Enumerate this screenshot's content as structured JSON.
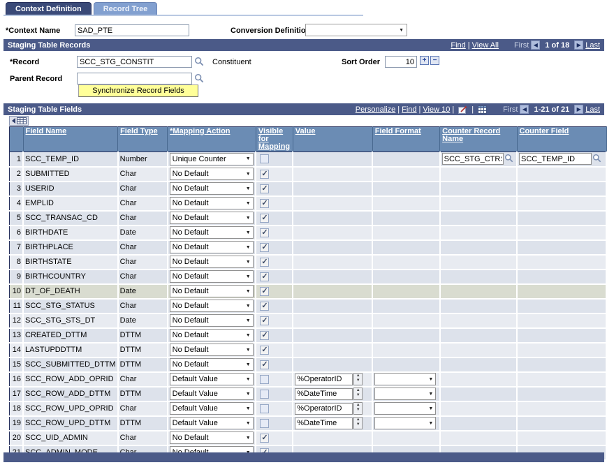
{
  "tabs": [
    {
      "label": "Context Definition",
      "active": true
    },
    {
      "label": "Record Tree",
      "active": false
    }
  ],
  "header_form": {
    "context_name_label": "*Context Name",
    "context_name_value": "SAD_PTE",
    "conversion_definition_label": "Conversion Definition",
    "conversion_definition_value": ""
  },
  "records_section": {
    "title": "Staging Table Records",
    "nav": {
      "find": "Find",
      "view_all": "View All",
      "first": "First",
      "counter": "1 of 18",
      "last": "Last"
    },
    "record_label": "*Record",
    "record_value": "SCC_STG_CONSTIT",
    "record_description": "Constituent",
    "sort_order_label": "Sort Order",
    "sort_order_value": "10",
    "parent_record_label": "Parent Record",
    "parent_record_value": "",
    "synchronize_button_label": "Synchronize Record Fields"
  },
  "fields_section": {
    "title": "Staging Table Fields",
    "nav": {
      "personalize": "Personalize",
      "find": "Find",
      "view": "View 10",
      "first": "First",
      "counter": "1-21 of 21",
      "last": "Last"
    },
    "columns": [
      "Field Name",
      "Field Type",
      "*Mapping Action",
      "Visible for Mapping",
      "Value",
      "Field Format",
      "Counter Record Name",
      "Counter Field"
    ],
    "rows": [
      {
        "num": 1,
        "field_name": "SCC_TEMP_ID",
        "field_type": "Number",
        "mapping_action": "Unique Counter",
        "visible_for_mapping": false,
        "counter_record_name": "SCC_STG_CTRS",
        "counter_field": "SCC_TEMP_ID"
      },
      {
        "num": 2,
        "field_name": "SUBMITTED",
        "field_type": "Char",
        "mapping_action": "No Default",
        "visible_for_mapping": true
      },
      {
        "num": 3,
        "field_name": "USERID",
        "field_type": "Char",
        "mapping_action": "No Default",
        "visible_for_mapping": true
      },
      {
        "num": 4,
        "field_name": "EMPLID",
        "field_type": "Char",
        "mapping_action": "No Default",
        "visible_for_mapping": true
      },
      {
        "num": 5,
        "field_name": "SCC_TRANSAC_CD",
        "field_type": "Char",
        "mapping_action": "No Default",
        "visible_for_mapping": true
      },
      {
        "num": 6,
        "field_name": "BIRTHDATE",
        "field_type": "Date",
        "mapping_action": "No Default",
        "visible_for_mapping": true
      },
      {
        "num": 7,
        "field_name": "BIRTHPLACE",
        "field_type": "Char",
        "mapping_action": "No Default",
        "visible_for_mapping": true
      },
      {
        "num": 8,
        "field_name": "BIRTHSTATE",
        "field_type": "Char",
        "mapping_action": "No Default",
        "visible_for_mapping": true
      },
      {
        "num": 9,
        "field_name": "BIRTHCOUNTRY",
        "field_type": "Char",
        "mapping_action": "No Default",
        "visible_for_mapping": true
      },
      {
        "num": 10,
        "field_name": "DT_OF_DEATH",
        "field_type": "Date",
        "mapping_action": "No Default",
        "visible_for_mapping": true,
        "highlight": true
      },
      {
        "num": 11,
        "field_name": "SCC_STG_STATUS",
        "field_type": "Char",
        "mapping_action": "No Default",
        "visible_for_mapping": true
      },
      {
        "num": 12,
        "field_name": "SCC_STG_STS_DT",
        "field_type": "Date",
        "mapping_action": "No Default",
        "visible_for_mapping": true
      },
      {
        "num": 13,
        "field_name": "CREATED_DTTM",
        "field_type": "DTTM",
        "mapping_action": "No Default",
        "visible_for_mapping": true
      },
      {
        "num": 14,
        "field_name": "LASTUPDDTTM",
        "field_type": "DTTM",
        "mapping_action": "No Default",
        "visible_for_mapping": true
      },
      {
        "num": 15,
        "field_name": "SCC_SUBMITTED_DTTM",
        "field_type": "DTTM",
        "mapping_action": "No Default",
        "visible_for_mapping": true
      },
      {
        "num": 16,
        "field_name": "SCC_ROW_ADD_OPRID",
        "field_type": "Char",
        "mapping_action": "Default Value",
        "visible_for_mapping": false,
        "value": "%OperatorID",
        "field_format": ""
      },
      {
        "num": 17,
        "field_name": "SCC_ROW_ADD_DTTM",
        "field_type": "DTTM",
        "mapping_action": "Default Value",
        "visible_for_mapping": false,
        "value": "%DateTime",
        "field_format": ""
      },
      {
        "num": 18,
        "field_name": "SCC_ROW_UPD_OPRID",
        "field_type": "Char",
        "mapping_action": "Default Value",
        "visible_for_mapping": false,
        "value": "%OperatorID",
        "field_format": ""
      },
      {
        "num": 19,
        "field_name": "SCC_ROW_UPD_DTTM",
        "field_type": "DTTM",
        "mapping_action": "Default Value",
        "visible_for_mapping": false,
        "value": "%DateTime",
        "field_format": ""
      },
      {
        "num": 20,
        "field_name": "SCC_UID_ADMIN",
        "field_type": "Char",
        "mapping_action": "No Default",
        "visible_for_mapping": true
      },
      {
        "num": 21,
        "field_name": "SCC_ADMIN_MODE",
        "field_type": "Char",
        "mapping_action": "No Default",
        "visible_for_mapping": true
      }
    ]
  },
  "colors": {
    "section_bar": "#4b5a88",
    "grid_header": "#6b8cb4",
    "tab_active": "#3a4a78",
    "tab_inactive": "#82a0d0",
    "row_odd": "#dde2eb",
    "row_even": "#e8ebf1",
    "row_highlight": "#d9dcd0",
    "sync_button": "#ffff99"
  }
}
